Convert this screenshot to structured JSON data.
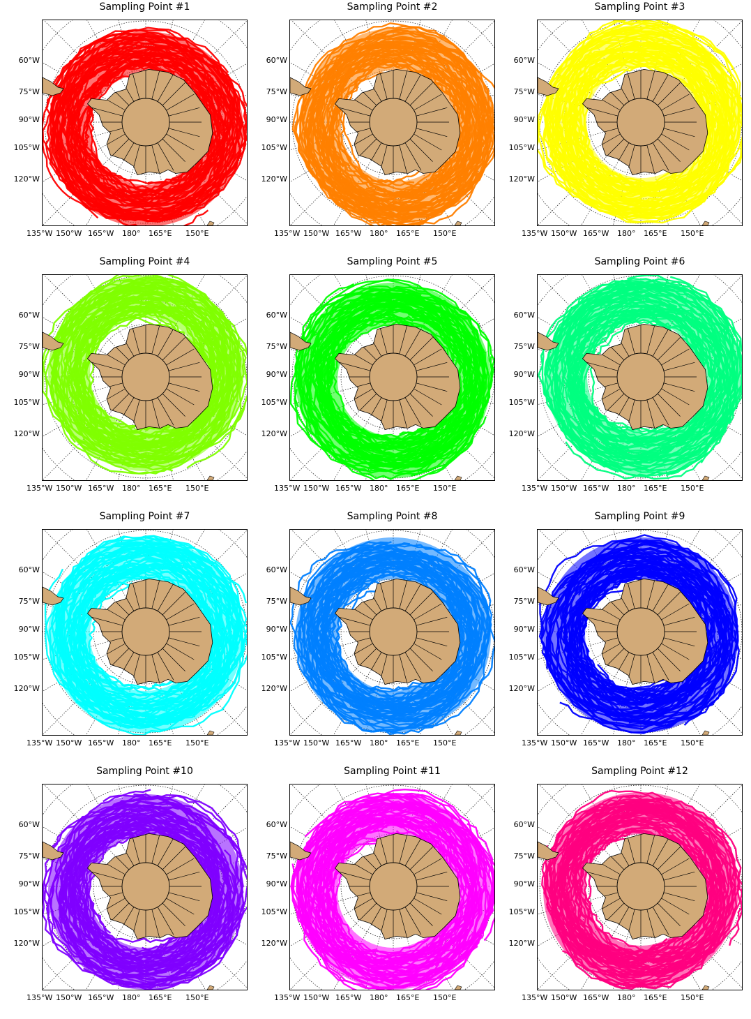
{
  "figure": {
    "panels": [
      {
        "title": "Sampling Point #1",
        "color": "#ff0000",
        "ring_bias": [
          0.0,
          0.1
        ]
      },
      {
        "title": "Sampling Point #2",
        "color": "#ff7f00",
        "ring_bias": [
          0.05,
          0.05
        ]
      },
      {
        "title": "Sampling Point #3",
        "color": "#ffff00",
        "ring_bias": [
          0.02,
          0.0
        ]
      },
      {
        "title": "Sampling Point #4",
        "color": "#80ff00",
        "ring_bias": [
          0.0,
          -0.05
        ]
      },
      {
        "title": "Sampling Point #5",
        "color": "#00ff00",
        "ring_bias": [
          0.0,
          0.05
        ]
      },
      {
        "title": "Sampling Point #6",
        "color": "#00ff80",
        "ring_bias": [
          0.03,
          0.0
        ]
      },
      {
        "title": "Sampling Point #7",
        "color": "#00ffff",
        "ring_bias": [
          0.0,
          0.05
        ]
      },
      {
        "title": "Sampling Point #8",
        "color": "#0080ff",
        "ring_bias": [
          0.0,
          0.05
        ]
      },
      {
        "title": "Sampling Point #9",
        "color": "#0000ff",
        "ring_bias": [
          0.0,
          0.05
        ]
      },
      {
        "title": "Sampling Point #10",
        "color": "#8000ff",
        "ring_bias": [
          0.0,
          0.08
        ]
      },
      {
        "title": "Sampling Point #11",
        "color": "#ff00ff",
        "ring_bias": [
          0.0,
          0.08
        ]
      },
      {
        "title": "Sampling Point #12",
        "color": "#ff0080",
        "ring_bias": [
          0.0,
          0.05
        ]
      }
    ],
    "lat_labels": [
      "60°W",
      "75°W",
      "90°W",
      "105°W",
      "120°W"
    ],
    "lon_labels": [
      "135°W",
      "150°W",
      "165°W",
      "180°",
      "165°E",
      "150°E"
    ],
    "land_color": "#d2aa78",
    "grid_color": "#333333"
  }
}
